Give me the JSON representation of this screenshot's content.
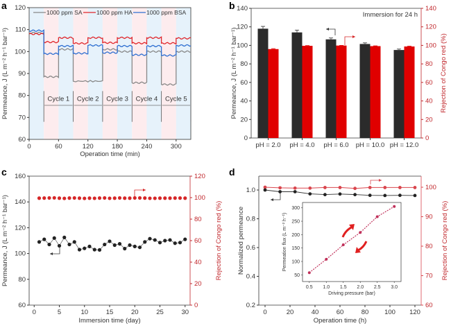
{
  "chart_data": [
    {
      "panel": "a",
      "type": "line",
      "xlabel": "Operation time (min)",
      "ylabel": "Permeance, J (L m⁻² h⁻¹ bar⁻¹)",
      "xlim": [
        0,
        330
      ],
      "ylim": [
        60,
        120
      ],
      "xticks": [
        0,
        60,
        120,
        180,
        240,
        300
      ],
      "yticks": [
        60,
        70,
        80,
        90,
        100,
        110,
        120
      ],
      "legend": [
        "1000 ppm SA",
        "1000 ppm HA",
        "1000 ppm BSA"
      ],
      "legend_position": "top",
      "cycles": [
        "Cycle 1",
        "Cycle 2",
        "Cycle 3",
        "Cycle 4",
        "Cycle 5"
      ],
      "series": [
        {
          "name": "1000 ppm SA",
          "color": "#888888",
          "segments": [
            [
              0,
              30,
              108.5
            ],
            [
              30,
              60,
              88.5
            ],
            [
              60,
              90,
              101
            ],
            [
              90,
              150,
              86.5
            ],
            [
              150,
              180,
              101
            ],
            [
              150,
              180,
              86
            ],
            [
              180,
              210,
              100
            ],
            [
              210,
              240,
              85.8
            ],
            [
              240,
              270,
              100
            ],
            [
              270,
              300,
              85
            ],
            [
              300,
              330,
              100
            ]
          ]
        },
        {
          "name": "1000 ppm HA",
          "color": "#e0262b",
          "segments": [
            [
              0,
              30,
              108
            ],
            [
              30,
              60,
              104.3
            ],
            [
              60,
              90,
              106.3
            ],
            [
              90,
              120,
              103.7
            ],
            [
              120,
              150,
              106.3
            ],
            [
              150,
              180,
              104
            ],
            [
              180,
              210,
              106.3
            ],
            [
              210,
              240,
              103.8
            ],
            [
              240,
              270,
              106.3
            ],
            [
              270,
              300,
              103.8
            ],
            [
              300,
              330,
              106
            ]
          ]
        },
        {
          "name": "1000 ppm BSA",
          "color": "#2e6fd1",
          "segments": [
            [
              0,
              30,
              109.5
            ],
            [
              30,
              60,
              99
            ],
            [
              60,
              90,
              102.5
            ],
            [
              90,
              120,
              99.2
            ],
            [
              120,
              150,
              102.8
            ],
            [
              150,
              180,
              99.5
            ],
            [
              180,
              210,
              102.5
            ],
            [
              210,
              240,
              98.5
            ],
            [
              240,
              270,
              102.5
            ],
            [
              270,
              300,
              98.2
            ],
            [
              300,
              330,
              102.8
            ]
          ]
        }
      ]
    },
    {
      "panel": "b",
      "type": "bar",
      "annotation": "Immersion for 24 h",
      "categories": [
        "pH = 2.0",
        "pH = 4.0",
        "pH = 6.0",
        "pH = 10.0",
        "pH = 12.0"
      ],
      "ylabel": "Permeance, J (L m⁻² h⁻¹ bar⁻¹)",
      "y2label": "Rejection of Congo red (%)",
      "ylim": [
        0,
        140
      ],
      "y2lim": [
        0,
        140
      ],
      "yticks": [
        0,
        20,
        40,
        60,
        80,
        100,
        120,
        140
      ],
      "series": [
        {
          "name": "Permeance",
          "axis": "left",
          "color": "#2b2b2b",
          "values": [
            118,
            114,
            106.5,
            101.5,
            95
          ],
          "errors": [
            2.5,
            2.5,
            1.5,
            1.2,
            1
          ]
        },
        {
          "name": "Rejection",
          "axis": "right",
          "color": "#e00000",
          "values": [
            96,
            99.5,
            99.8,
            99.2,
            98.8
          ],
          "errors": [
            0.5,
            0.3,
            0.2,
            0.3,
            0.4
          ]
        }
      ]
    },
    {
      "panel": "c",
      "type": "scatter",
      "xlabel": "Immersion time (day)",
      "ylabel": "Permeance, J (L m⁻² h⁻¹ bar⁻¹)",
      "y2label": "Rejection of Congo red (%)",
      "xlim": [
        -1,
        31
      ],
      "ylim": [
        60,
        160
      ],
      "y2lim": [
        0,
        120
      ],
      "xticks": [
        0,
        5,
        10,
        15,
        20,
        25,
        30
      ],
      "yticks": [
        60,
        80,
        100,
        120,
        140,
        160
      ],
      "y2ticks": [
        0,
        20,
        40,
        60,
        80,
        100,
        120
      ],
      "x": [
        1,
        2,
        3,
        4,
        5,
        6,
        7,
        8,
        9,
        10,
        11,
        12,
        13,
        14,
        15,
        16,
        17,
        18,
        19,
        20,
        21,
        22,
        23,
        24,
        25,
        26,
        27,
        28,
        29,
        30
      ],
      "series": [
        {
          "name": "Permeance",
          "axis": "left",
          "color": "#222222",
          "values": [
            109,
            111,
            107,
            112,
            106,
            112.5,
            107,
            109,
            103,
            104,
            105.5,
            103,
            102.8,
            107,
            109.5,
            106.5,
            107.5,
            103.8,
            106.5,
            105.5,
            104.8,
            109,
            111.5,
            110.5,
            108.5,
            110,
            110.5,
            108,
            108.5,
            111
          ]
        },
        {
          "name": "Rejection",
          "axis": "right",
          "color": "#d62728",
          "values": [
            99.5,
            99.6,
            99.7,
            99.8,
            99.5,
            99.3,
            99.6,
            99.7,
            99.5,
            99.3,
            99.5,
            99.4,
            99.6,
            99.7,
            99.4,
            99.5,
            99.7,
            99.5,
            99.5,
            99.7,
            99.7,
            99.6,
            99.4,
            99.4,
            99.5,
            99.5,
            99.5,
            99.6,
            99.6,
            99.5
          ]
        }
      ]
    },
    {
      "panel": "d",
      "type": "line",
      "xlabel": "Operation time (h)",
      "ylabel": "Normalized permeance",
      "y2label": "Rejection of Congo red (%)",
      "xlim": [
        -5,
        125
      ],
      "ylim": [
        0.2,
        1.1
      ],
      "y2lim": [
        60,
        104
      ],
      "xticks": [
        0,
        20,
        40,
        60,
        80,
        100,
        120
      ],
      "yticks": [
        0.2,
        0.4,
        0.6,
        0.8,
        1.0
      ],
      "y2ticks": [
        60,
        70,
        80,
        90,
        100
      ],
      "x": [
        0,
        12,
        24,
        36,
        48,
        60,
        72,
        84,
        96,
        108,
        120
      ],
      "series": [
        {
          "name": "Normalized permeance",
          "axis": "left",
          "color": "#222222",
          "values": [
            1.0,
            0.988,
            0.988,
            0.973,
            0.968,
            0.972,
            0.968,
            0.963,
            0.962,
            0.963,
            0.962
          ]
        },
        {
          "name": "Rejection",
          "axis": "right",
          "color": "#d9454d",
          "values": [
            100,
            99.8,
            99.7,
            99.7,
            99.9,
            99.9,
            99.6,
            99.9,
            99.9,
            99.9,
            99.9
          ]
        }
      ],
      "inset": {
        "type": "scatter",
        "xlabel": "Driving pressure (bar)",
        "ylabel": "Permeation flux (L m⁻² h⁻¹)",
        "xlim": [
          0.3,
          3.2
        ],
        "ylim": [
          25,
          320
        ],
        "xticks": [
          "0.5",
          "1.0",
          "1.5",
          "2.0",
          "2.5",
          "3.0"
        ],
        "yticks": [
          50,
          100,
          150,
          200,
          250,
          300
        ],
        "x": [
          0.5,
          1.0,
          1.5,
          2.0,
          2.5,
          3.0
        ],
        "values": [
          58,
          108,
          162,
          208,
          267,
          305
        ],
        "color": "#c0305a"
      }
    }
  ]
}
